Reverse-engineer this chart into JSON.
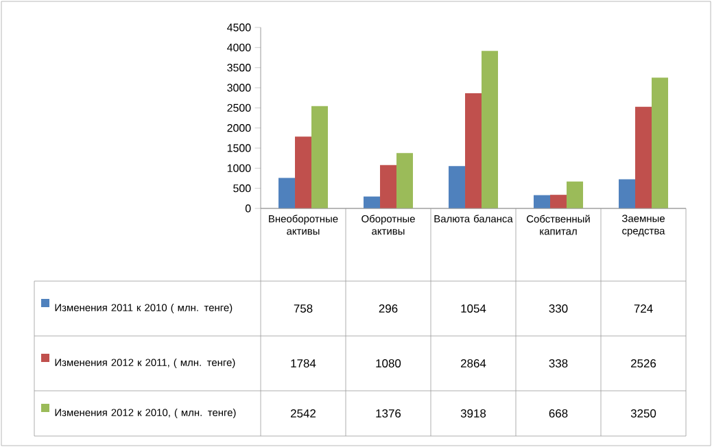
{
  "chart_data": {
    "type": "bar",
    "categories": [
      "Внеоборотные активы",
      "Оборотные активы",
      "Валюта баланса",
      "Собственный капитал",
      "Заемные средства"
    ],
    "series": [
      {
        "name": "Изменения 2011 к 2010 ( млн. тенге)",
        "color": "#4f81bd",
        "values": [
          758,
          296,
          1054,
          330,
          724
        ]
      },
      {
        "name": "Изменения 2012 к 2011, ( млн. тенге)",
        "color": "#c0504d",
        "values": [
          1784,
          1080,
          2864,
          338,
          2526
        ]
      },
      {
        "name": "Изменения 2012 к 2010, ( млн. тенге)",
        "color": "#9bbb59",
        "values": [
          2542,
          1376,
          3918,
          668,
          3250
        ]
      }
    ],
    "ylim": [
      0,
      4500
    ],
    "yticks": [
      0,
      500,
      1000,
      1500,
      2000,
      2500,
      3000,
      3500,
      4000,
      4500
    ],
    "data_labels": true,
    "legend": "left"
  }
}
